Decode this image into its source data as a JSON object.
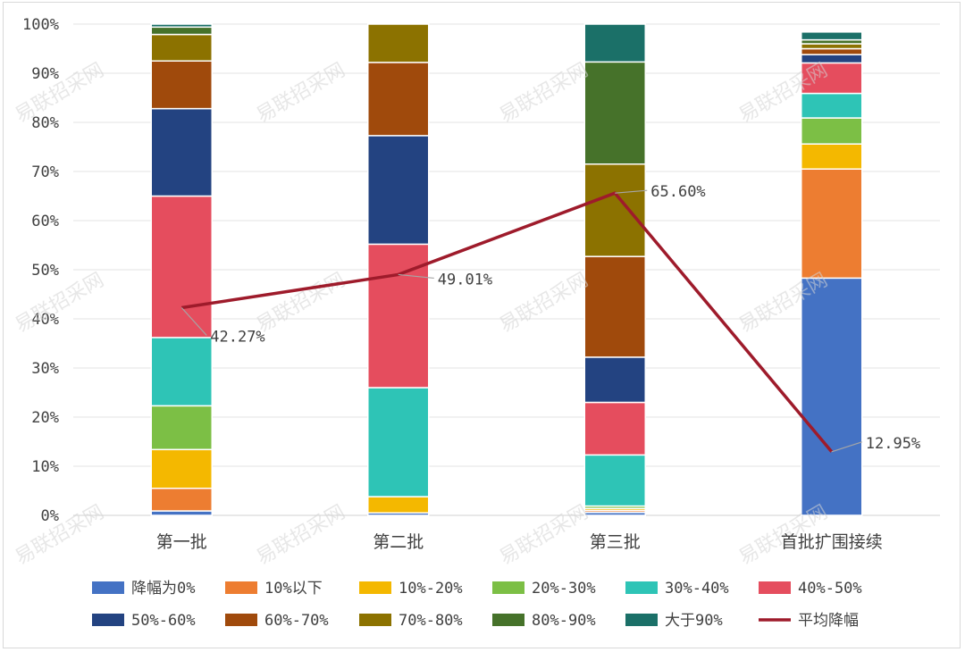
{
  "chart_data": {
    "type": "bar",
    "stacked": true,
    "categories": [
      "第一批",
      "第二批",
      "第三批",
      "首批扩围接续"
    ],
    "ylim": [
      0,
      100
    ],
    "ytick_labels": [
      "0%",
      "10%",
      "20%",
      "30%",
      "40%",
      "50%",
      "60%",
      "70%",
      "80%",
      "90%",
      "100%"
    ],
    "grid": true,
    "legend_position": "bottom",
    "series": [
      {
        "name": "降幅为0%",
        "color": "#4472c4",
        "values": [
          0.9,
          0.5,
          0.6,
          48.3
        ]
      },
      {
        "name": "10%以下",
        "color": "#ed7d31",
        "values": [
          4.6,
          0.0,
          0.4,
          22.2
        ]
      },
      {
        "name": "10%-20%",
        "color": "#f4b800",
        "values": [
          7.9,
          3.3,
          0.4,
          5.1
        ]
      },
      {
        "name": "20%-30%",
        "color": "#7cbf45",
        "values": [
          8.9,
          0.0,
          0.5,
          5.3
        ]
      },
      {
        "name": "30%-40%",
        "color": "#2ec4b6",
        "values": [
          13.9,
          22.2,
          10.4,
          5.0
        ]
      },
      {
        "name": "40%-50%",
        "color": "#e54d5e",
        "values": [
          28.8,
          29.2,
          10.7,
          6.2
        ]
      },
      {
        "name": "50%-60%",
        "color": "#234381",
        "values": [
          17.8,
          22.1,
          9.2,
          1.7
        ]
      },
      {
        "name": "60%-70%",
        "color": "#a04a0c",
        "values": [
          9.7,
          14.9,
          20.5,
          1.2
        ]
      },
      {
        "name": "70%-80%",
        "color": "#8c7200",
        "values": [
          5.4,
          7.8,
          18.8,
          1.0
        ]
      },
      {
        "name": "80%-90%",
        "color": "#46722a",
        "values": [
          1.5,
          0.0,
          20.8,
          0.8
        ]
      },
      {
        "name": "大于90%",
        "color": "#1b7068",
        "values": [
          0.6,
          0.0,
          7.7,
          1.6
        ]
      }
    ],
    "line_series": {
      "name": "平均降幅",
      "color": "#9e1b2b",
      "values": [
        42.27,
        49.01,
        65.6,
        12.95
      ],
      "labels": [
        "42.27%",
        "49.01%",
        "65.60%",
        "12.95%"
      ]
    },
    "watermark": "易联招采网"
  }
}
